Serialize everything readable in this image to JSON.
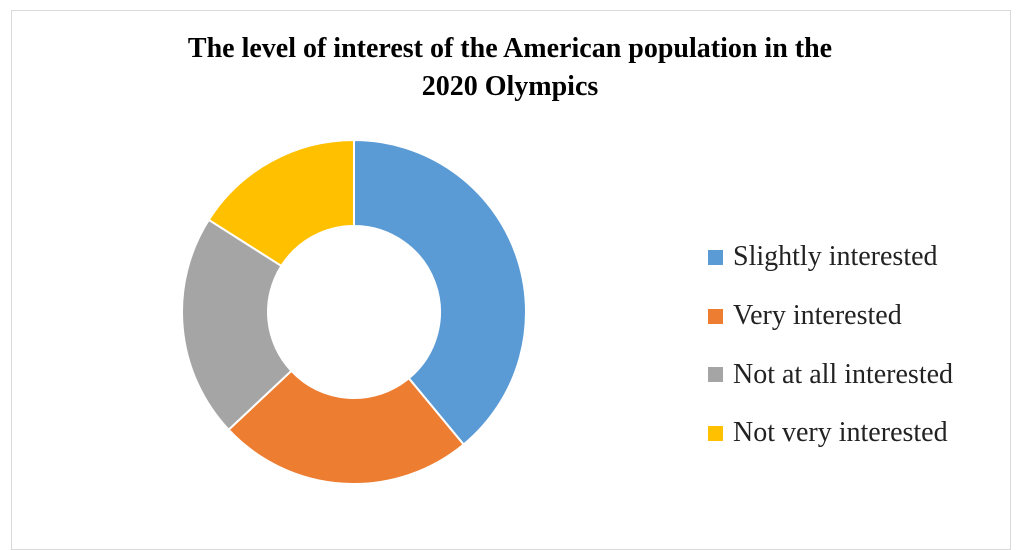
{
  "chart_data": {
    "type": "pie",
    "variant": "donut",
    "title": "The level of interest of the American population in the 2020 Olympics",
    "title_lines": [
      "The level of interest of the American population in the",
      "2020 Olympics"
    ],
    "categories": [
      "Slightly interested",
      "Very interested",
      "Not at all interested",
      "Not very interested"
    ],
    "values": [
      39,
      24,
      21,
      16
    ],
    "colors": [
      "#5B9BD5",
      "#ED7D31",
      "#A5A5A5",
      "#FFC000"
    ],
    "legend_position": "right",
    "start_angle_deg": 0,
    "direction": "clockwise"
  }
}
